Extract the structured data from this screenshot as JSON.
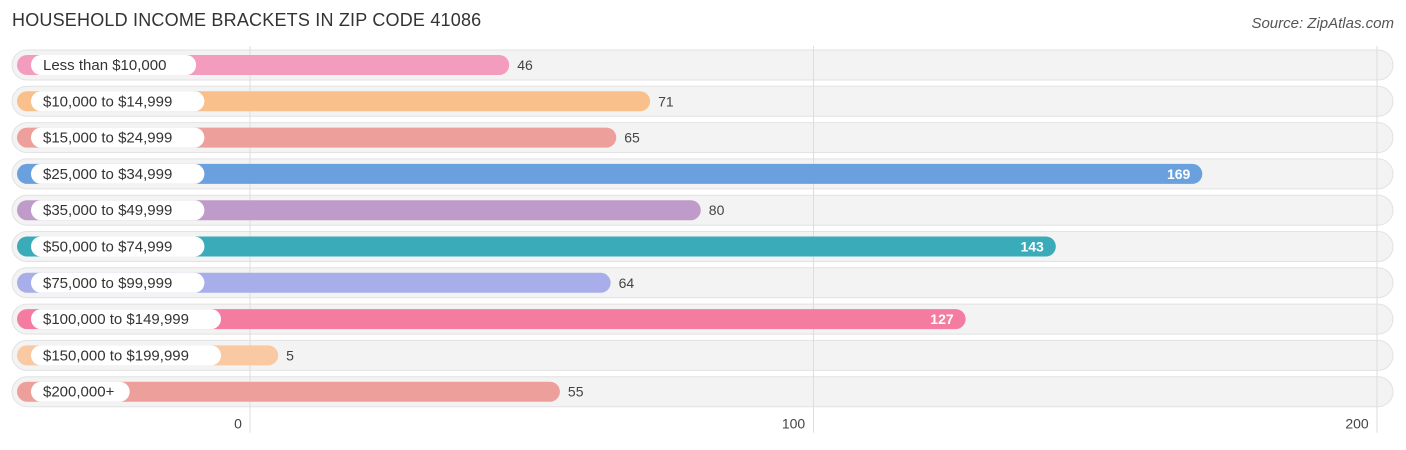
{
  "title": "HOUSEHOLD INCOME BRACKETS IN ZIP CODE 41086",
  "source": "Source: ZipAtlas.com",
  "chart_data": {
    "type": "bar",
    "orientation": "horizontal",
    "title": "HOUSEHOLD INCOME BRACKETS IN ZIP CODE 41086",
    "xlabel": "",
    "ylabel": "",
    "xlim": [
      0,
      200
    ],
    "ticks": [
      0,
      100,
      200
    ],
    "tick_labels": [
      "0",
      "100",
      "200"
    ],
    "grid": true,
    "categories": [
      "Less than $10,000",
      "$10,000 to $14,999",
      "$15,000 to $24,999",
      "$25,000 to $34,999",
      "$35,000 to $49,999",
      "$50,000 to $74,999",
      "$75,000 to $99,999",
      "$100,000 to $149,999",
      "$150,000 to $199,999",
      "$200,000+"
    ],
    "values": [
      46,
      71,
      65,
      169,
      80,
      143,
      64,
      127,
      5,
      55
    ],
    "value_labels": [
      "46",
      "71",
      "65",
      "169",
      "80",
      "143",
      "64",
      "127",
      "5",
      "55"
    ],
    "colors": [
      "#f49cbd",
      "#f9c08b",
      "#ed9f9b",
      "#6aa0dd",
      "#bf9bc9",
      "#3aabb9",
      "#a7aee9",
      "#f47ca0",
      "#f8c9a2",
      "#ed9f9b"
    ]
  }
}
